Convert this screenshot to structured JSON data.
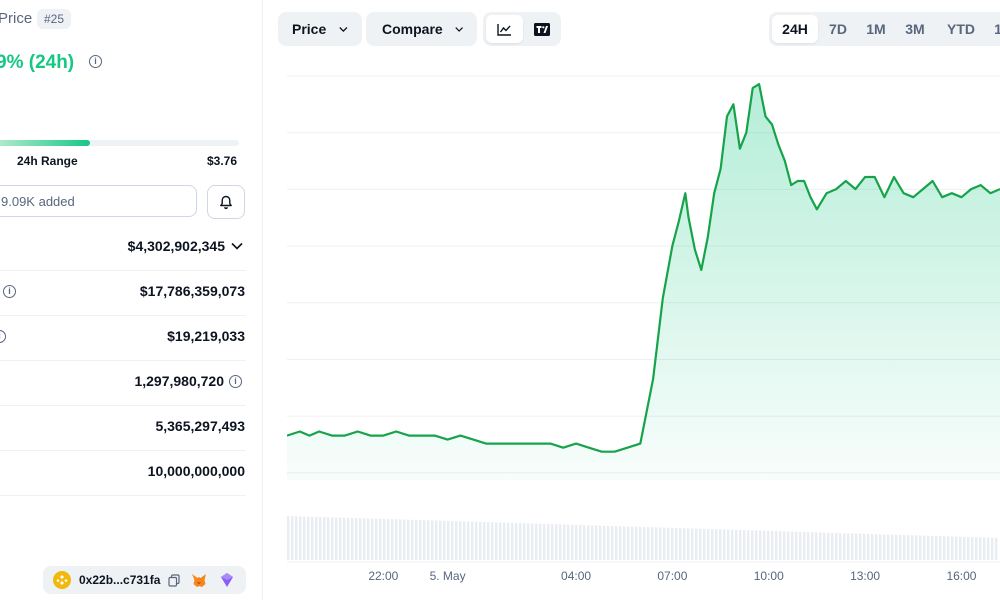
{
  "header": {
    "title_fragment": "Price",
    "rank": "#25",
    "change_24h": "9% (24h)"
  },
  "range_24h": {
    "label": "24h Range",
    "high": "$3.76",
    "fill_fraction": 0.39
  },
  "watchlist": {
    "label": "9.09K added"
  },
  "stats": [
    {
      "value": "$4,302,902,345",
      "suffix_icon": "chevron-down-icon"
    },
    {
      "value": "$17,786,359,073",
      "left_icon": "info-icon"
    },
    {
      "value": "$19,219,033"
    },
    {
      "value": "1,297,980,720",
      "suffix_icon": "info-icon"
    },
    {
      "value": "5,365,297,493"
    },
    {
      "value": "10,000,000,000"
    }
  ],
  "contract": {
    "address": "0x22b...c731fa"
  },
  "toolbar": {
    "price_label": "Price",
    "compare_label": "Compare"
  },
  "time_ranges": [
    "24H",
    "7D",
    "1M",
    "3M",
    "YTD",
    "1"
  ],
  "active_range": "24H",
  "colors": {
    "accent_green": "#16c784",
    "line_green": "#16a34a",
    "muted": "#58667e",
    "chip_bg": "#eff2f5"
  },
  "chart_data": {
    "type": "area",
    "x_tick_labels": [
      "22:00",
      "5. May",
      "04:00",
      "07:00",
      "10:00",
      "13:00",
      "16:00"
    ],
    "x_tick_hours": [
      22,
      24,
      28,
      31,
      34,
      37,
      40
    ],
    "ylim": [
      0,
      1
    ],
    "y_note": "price axis values not visible in screenshot; y values are normalized to the visible plot height",
    "series": [
      {
        "x_hours": [
          19.0,
          19.4,
          19.7,
          20.0,
          20.4,
          20.8,
          21.2,
          21.6,
          22.0,
          22.4,
          22.8,
          23.2,
          23.6,
          24.0,
          24.4,
          24.8,
          25.2,
          25.6,
          26.0,
          26.4,
          26.8,
          27.2,
          27.6,
          28.0,
          28.4,
          28.8,
          29.2,
          29.6,
          30.0,
          30.4,
          30.7,
          31.0,
          31.2,
          31.4,
          31.5,
          31.7,
          31.9,
          32.1,
          32.3,
          32.5,
          32.7,
          32.9,
          33.1,
          33.3,
          33.5,
          33.7,
          33.9,
          34.1,
          34.3,
          34.5,
          34.7,
          34.9,
          35.1,
          35.3,
          35.5,
          35.8,
          36.1,
          36.4,
          36.7,
          37.0,
          37.3,
          37.6,
          37.9,
          38.2,
          38.5,
          38.8,
          39.1,
          39.4,
          39.7,
          40.0,
          40.3,
          40.6,
          40.9,
          41.2
        ],
        "values": [
          0.11,
          0.12,
          0.11,
          0.12,
          0.11,
          0.11,
          0.12,
          0.11,
          0.11,
          0.12,
          0.11,
          0.11,
          0.11,
          0.1,
          0.11,
          0.1,
          0.09,
          0.09,
          0.09,
          0.09,
          0.09,
          0.09,
          0.08,
          0.09,
          0.08,
          0.07,
          0.07,
          0.08,
          0.09,
          0.25,
          0.45,
          0.58,
          0.64,
          0.71,
          0.65,
          0.57,
          0.52,
          0.6,
          0.71,
          0.77,
          0.9,
          0.93,
          0.82,
          0.86,
          0.97,
          0.98,
          0.9,
          0.88,
          0.83,
          0.79,
          0.73,
          0.74,
          0.74,
          0.7,
          0.67,
          0.71,
          0.72,
          0.74,
          0.72,
          0.75,
          0.75,
          0.7,
          0.75,
          0.71,
          0.7,
          0.72,
          0.74,
          0.7,
          0.71,
          0.7,
          0.72,
          0.73,
          0.71,
          0.72
        ]
      }
    ],
    "volume_note": "faint volume bars below line, no values printed"
  }
}
